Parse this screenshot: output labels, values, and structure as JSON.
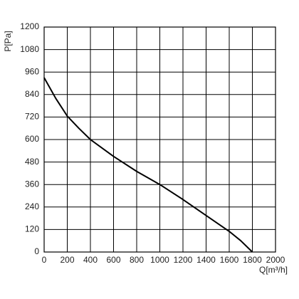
{
  "chart_data": {
    "type": "line",
    "x_label": "Q[m³/h]",
    "y_label": "P[Pa]",
    "series": [
      {
        "name": "curve",
        "color": "#000000",
        "x": [
          0,
          100,
          200,
          300,
          400,
          600,
          800,
          1000,
          1200,
          1400,
          1600,
          1700,
          1800
        ],
        "values": [
          930,
          820,
          725,
          660,
          600,
          510,
          430,
          360,
          280,
          195,
          110,
          60,
          0
        ]
      }
    ],
    "xlim": [
      0,
      2000
    ],
    "ylim": [
      0,
      1200
    ],
    "xticks": [
      0,
      200,
      400,
      600,
      800,
      1000,
      1200,
      1400,
      1600,
      1800,
      2000
    ],
    "yticks": [
      0,
      120,
      240,
      360,
      480,
      600,
      720,
      840,
      960,
      1080,
      1200
    ],
    "grid": true
  }
}
